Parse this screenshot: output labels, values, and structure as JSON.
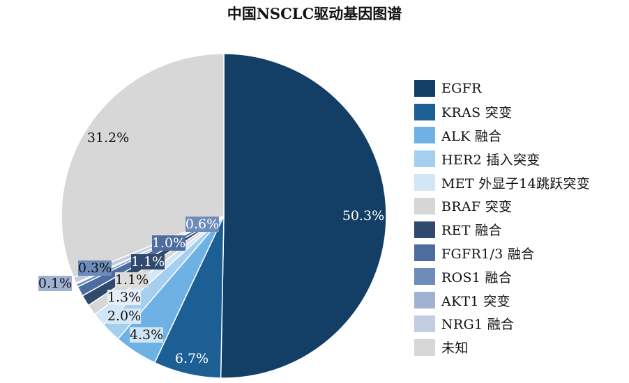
{
  "chart_data": {
    "type": "pie",
    "title": "中国NSCLC驱动基因图谱",
    "slices": [
      {
        "label": "EGFR",
        "value": 50.3,
        "display": "50.3%",
        "color": "#133f66"
      },
      {
        "label": "KRAS 突变",
        "value": 6.7,
        "display": "6.7%",
        "color": "#1b5f94"
      },
      {
        "label": "ALK 融合",
        "value": 4.3,
        "display": "4.3%",
        "color": "#6eb1e4"
      },
      {
        "label": "HER2 插入突变",
        "value": 2.0,
        "display": "2.0%",
        "color": "#a4cff0"
      },
      {
        "label": "MET 外显子14跳跃突变",
        "value": 1.3,
        "display": "1.3%",
        "color": "#d1e6f6"
      },
      {
        "label": "BRAF 突变",
        "value": 1.1,
        "display": "1.1%",
        "color": "#d6d6d6"
      },
      {
        "label": "RET 融合",
        "value": 1.1,
        "display": "1.1%",
        "color": "#2f4a6c"
      },
      {
        "label": "FGFR1/3 融合",
        "value": 1.0,
        "display": "1.0%",
        "color": "#4d6c9f"
      },
      {
        "label": "ROS1 融合",
        "value": 0.3,
        "display": "0.3%",
        "color": "#6e8cba"
      },
      {
        "label": "AKT1 突变",
        "value": 0.1,
        "display": "0.1%",
        "color": "#a1b1d1"
      },
      {
        "label": "NRG1 融合",
        "value": 0.6,
        "display": "0.6%",
        "color": "#c3cde2"
      },
      {
        "label": "未知",
        "value": 31.2,
        "display": "31.2%",
        "color": "#d7d7d7"
      }
    ],
    "legend_position": "right"
  }
}
